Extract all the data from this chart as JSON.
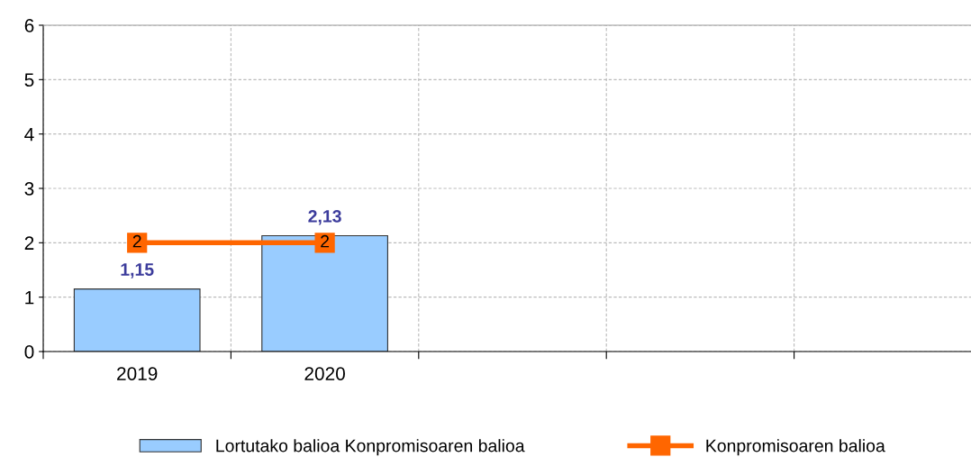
{
  "chart_data": {
    "type": "bar",
    "categories": [
      "2019",
      "2020",
      null,
      null,
      null
    ],
    "series": [
      {
        "name": "Lortutako balioa Konpromisoaren balioa",
        "color": "#99ccff",
        "values": [
          1.15,
          2.13,
          null,
          null,
          null
        ],
        "value_labels": [
          "1,15",
          "2,13",
          null,
          null,
          null
        ]
      },
      {
        "name": "Konpromisoaren balioa",
        "type": "line",
        "color": "#ff6600",
        "marker": "square",
        "values": [
          2,
          2,
          null,
          null,
          null
        ],
        "value_labels": [
          "2",
          "2",
          null,
          null,
          null
        ]
      }
    ],
    "ylim": [
      0,
      6
    ],
    "yticks": [
      0,
      1,
      2,
      3,
      4,
      5,
      6
    ],
    "grid": true,
    "legend": "bottom"
  }
}
